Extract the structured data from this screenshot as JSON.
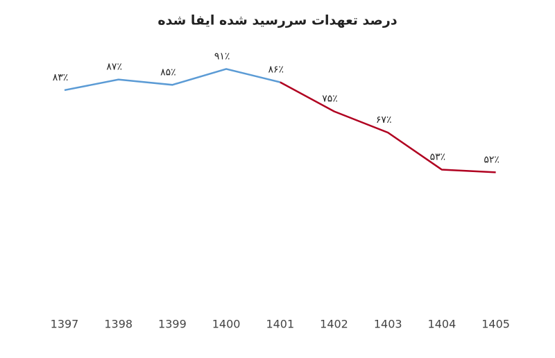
{
  "chart_data": {
    "type": "line",
    "title": "درصد تعهدات سررسید شده ایفا شده",
    "categories": [
      "1397",
      "1398",
      "1399",
      "1400",
      "1401",
      "1402",
      "1403",
      "1404",
      "1405"
    ],
    "ylim": [
      0,
      100
    ],
    "series": [
      {
        "color": "#5b9bd5",
        "values": [
          83,
          87,
          85,
          91,
          86,
          null,
          null,
          null,
          null
        ],
        "value_labels": [
          "۸۳٪",
          "۸۷٪",
          "۸۵٪",
          "۹۱٪",
          "۸۶٪",
          null,
          null,
          null,
          null
        ]
      },
      {
        "color": "#b00020",
        "values": [
          null,
          null,
          null,
          null,
          86,
          75,
          67,
          53,
          52
        ],
        "value_labels": [
          null,
          null,
          null,
          null,
          null,
          "۷۵٪",
          "۶۷٪",
          "۵۳٪",
          "۵۲٪"
        ]
      }
    ]
  }
}
